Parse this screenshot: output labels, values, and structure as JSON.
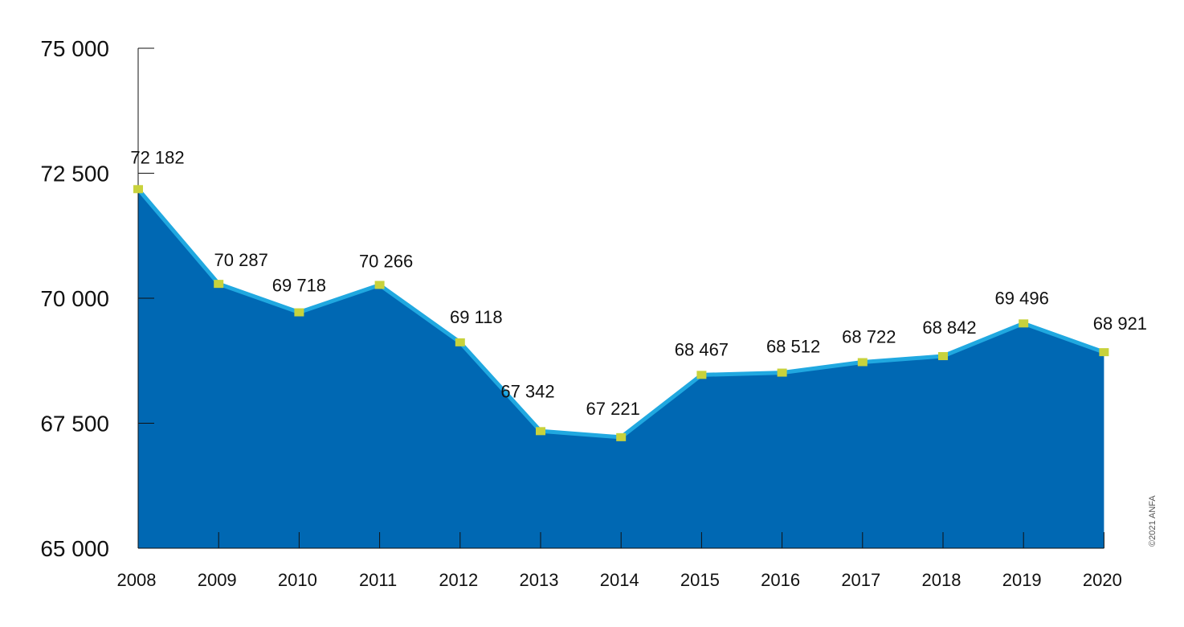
{
  "chart_data": {
    "type": "area",
    "title": "",
    "xlabel": "",
    "ylabel": "",
    "x": [
      "2008",
      "2009",
      "2010",
      "2011",
      "2012",
      "2013",
      "2014",
      "2015",
      "2016",
      "2017",
      "2018",
      "2019",
      "2020"
    ],
    "values": [
      72182,
      70287,
      69718,
      70266,
      69118,
      67342,
      67221,
      68467,
      68512,
      68722,
      68842,
      69496,
      68921
    ],
    "value_labels": [
      "72 182",
      "70 287",
      "69 718",
      "70 266",
      "69 118",
      "67 342",
      "67 221",
      "68 467",
      "68 512",
      "68 722",
      "68 842",
      "69 496",
      "68 921"
    ],
    "ylim": [
      65000,
      75000
    ],
    "yticks": [
      75000,
      72500,
      70000,
      67500,
      65000
    ],
    "ytick_labels": [
      "75 000",
      "72 500",
      "70 000",
      "67 500",
      "65 000"
    ],
    "grid": false,
    "legend": "none",
    "highlight_index": 12
  },
  "colors": {
    "area_fill": "#0068b3",
    "line": "#20a8e0",
    "marker": "#c8d23c",
    "highlight_label": "#e2231a",
    "text": "#111111"
  },
  "credit": "©2021 ANFA"
}
